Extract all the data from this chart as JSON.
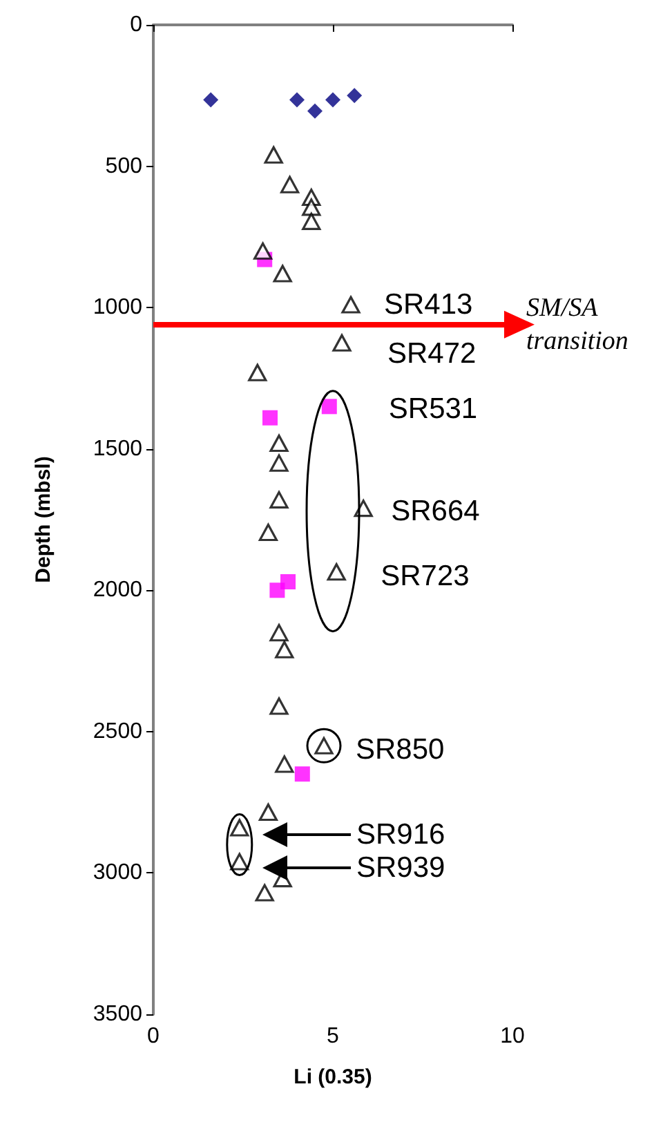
{
  "chart_data": {
    "type": "scatter",
    "xlabel": "Li (0.35)",
    "ylabel": "Depth (mbsl)",
    "xlim": [
      0,
      10
    ],
    "xticks": [
      0,
      5,
      10
    ],
    "ylim": [
      3500,
      0
    ],
    "yticks": [
      0,
      500,
      1000,
      1500,
      2000,
      2500,
      3000,
      3500
    ],
    "grid": false,
    "series": [
      {
        "color": "#000080",
        "marker": "diamond",
        "x": [
          1.6,
          4.0,
          4.5,
          5.0,
          5.6
        ],
        "values": [
          265,
          265,
          305,
          265,
          250
        ]
      },
      {
        "color": "#000000",
        "marker": "triangle",
        "x": [
          3.35,
          3.8,
          4.4,
          4.4,
          4.4,
          3.05,
          3.6,
          5.5,
          5.25,
          2.9,
          3.5,
          3.5,
          3.5,
          3.2,
          5.85,
          5.1,
          3.5,
          3.65,
          3.5,
          3.65,
          4.75,
          3.2,
          2.4,
          2.4,
          3.6,
          3.1
        ],
        "values": [
          460,
          565,
          610,
          645,
          695,
          800,
          880,
          990,
          1125,
          1230,
          1480,
          1550,
          1680,
          1795,
          1710,
          1935,
          2150,
          2210,
          2410,
          2615,
          2550,
          2785,
          2840,
          2960,
          3020,
          3070
        ]
      },
      {
        "color": "#ff00ff",
        "marker": "square",
        "x": [
          3.1,
          3.25,
          4.9,
          3.75,
          3.45,
          4.15
        ],
        "values": [
          830,
          1390,
          1350,
          1970,
          2000,
          2650
        ]
      }
    ],
    "ref_lines": [
      {
        "axis": "y",
        "value": 1060,
        "label": "SM/SA transition",
        "color": "#ff0000"
      }
    ],
    "annotations": [
      {
        "text": "SR413",
        "x": 5.5,
        "y": 990
      },
      {
        "text": "SR472",
        "x": 5.25,
        "y": 1125
      },
      {
        "text": "SR531",
        "x": 4.9,
        "y": 1350
      },
      {
        "text": "SR664",
        "x": 5.85,
        "y": 1710
      },
      {
        "text": "SR723",
        "x": 5.1,
        "y": 1935
      },
      {
        "text": "SR850",
        "x": 4.75,
        "y": 2550
      },
      "SR916",
      "SR939"
    ]
  }
}
